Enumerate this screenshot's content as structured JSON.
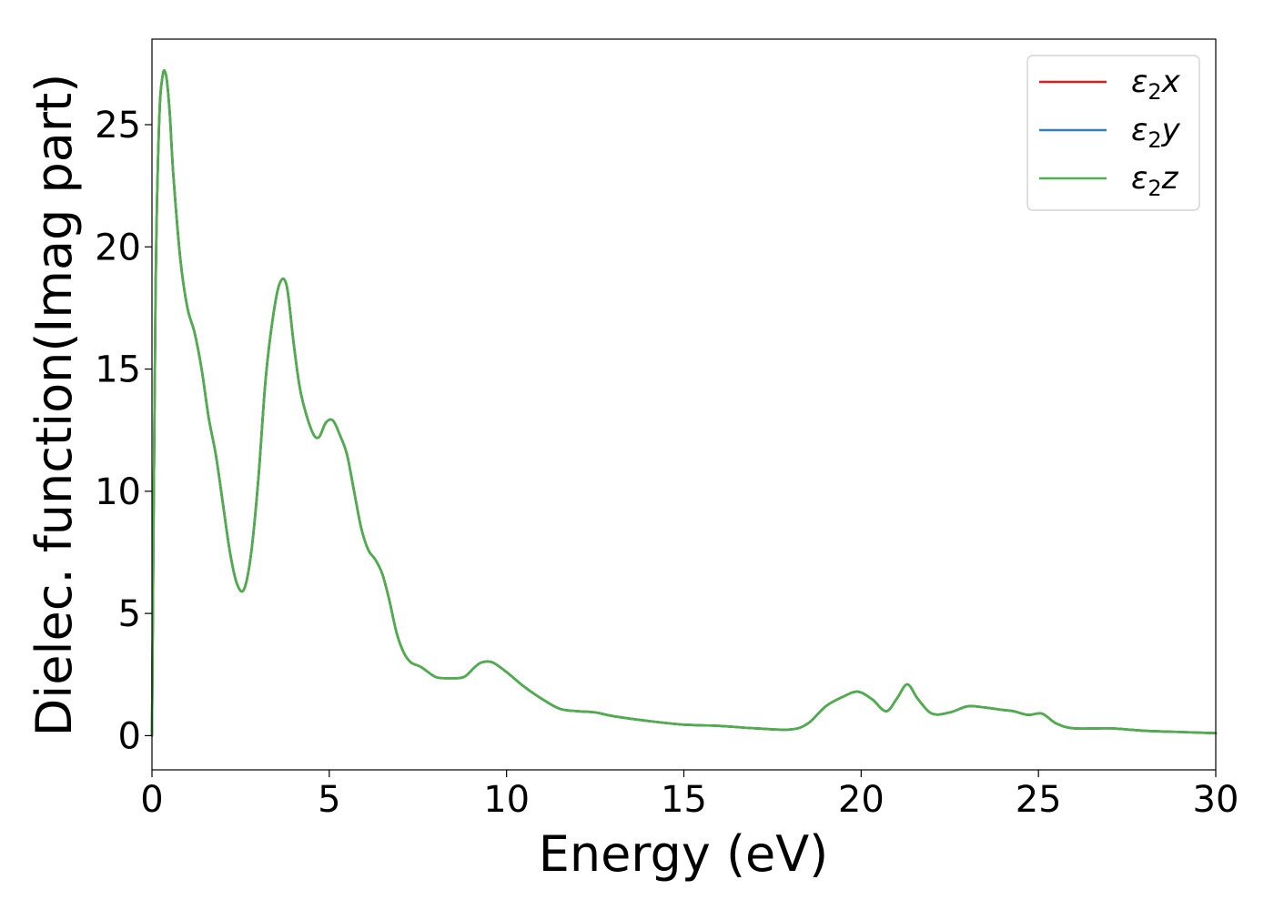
{
  "chart_data": {
    "type": "line",
    "xlabel": "Energy (eV)",
    "ylabel": "Dielec. function(Imag part)",
    "xlim": [
      0,
      30
    ],
    "ylim": [
      -1.4,
      28.5
    ],
    "xticks": [
      0,
      5,
      10,
      15,
      20,
      25,
      30
    ],
    "yticks": [
      0,
      5,
      10,
      15,
      20,
      25
    ],
    "grid": false,
    "legend_position": "top-right",
    "series": [
      {
        "name": "ε2x",
        "label": {
          "base": "ε",
          "sub": "2",
          "suffix": "x"
        },
        "color": "#e41a1c",
        "x": [
          0,
          0.1,
          0.2,
          0.3,
          0.4,
          0.5,
          0.6,
          0.8,
          1.0,
          1.2,
          1.4,
          1.6,
          1.8,
          2.0,
          2.2,
          2.4,
          2.6,
          2.8,
          3.0,
          3.2,
          3.4,
          3.6,
          3.8,
          4.0,
          4.2,
          4.5,
          4.7,
          4.9,
          5.1,
          5.3,
          5.5,
          5.7,
          5.9,
          6.1,
          6.3,
          6.5,
          6.7,
          6.9,
          7.1,
          7.3,
          7.6,
          8.0,
          8.4,
          8.8,
          9.1,
          9.3,
          9.6,
          10.0,
          10.5,
          11.0,
          11.5,
          12.0,
          12.5,
          13.0,
          14.0,
          15.0,
          16.0,
          17.0,
          18.0,
          18.5,
          19.0,
          19.5,
          19.9,
          20.3,
          20.7,
          21.0,
          21.3,
          21.6,
          22.0,
          22.5,
          23.0,
          23.5,
          24.0,
          24.3,
          24.7,
          25.1,
          25.5,
          26.0,
          27.0,
          28.0,
          29.0,
          30.0
        ],
        "y": [
          0,
          18.0,
          25.0,
          27.0,
          27.0,
          25.5,
          23.0,
          19.5,
          17.5,
          16.5,
          15.0,
          13.0,
          11.5,
          9.5,
          7.5,
          6.2,
          6.0,
          7.5,
          10.5,
          14.5,
          17.0,
          18.5,
          18.4,
          16.0,
          14.0,
          12.5,
          12.2,
          12.8,
          12.9,
          12.3,
          11.5,
          10.0,
          8.5,
          7.6,
          7.2,
          6.6,
          5.5,
          4.2,
          3.4,
          3.0,
          2.8,
          2.4,
          2.35,
          2.4,
          2.8,
          3.0,
          3.0,
          2.6,
          2.0,
          1.5,
          1.1,
          1.0,
          0.95,
          0.8,
          0.6,
          0.45,
          0.4,
          0.3,
          0.25,
          0.5,
          1.2,
          1.6,
          1.8,
          1.5,
          1.0,
          1.5,
          2.1,
          1.5,
          0.9,
          0.95,
          1.2,
          1.15,
          1.05,
          1.0,
          0.85,
          0.9,
          0.5,
          0.3,
          0.3,
          0.2,
          0.15,
          0.1
        ]
      },
      {
        "name": "ε2y",
        "label": {
          "base": "ε",
          "sub": "2",
          "suffix": "y"
        },
        "color": "#377eb8",
        "x": [
          0,
          0.1,
          0.2,
          0.3,
          0.4,
          0.5,
          0.6,
          0.8,
          1.0,
          1.2,
          1.4,
          1.6,
          1.8,
          2.0,
          2.2,
          2.4,
          2.6,
          2.8,
          3.0,
          3.2,
          3.4,
          3.6,
          3.8,
          4.0,
          4.2,
          4.5,
          4.7,
          4.9,
          5.1,
          5.3,
          5.5,
          5.7,
          5.9,
          6.1,
          6.3,
          6.5,
          6.7,
          6.9,
          7.1,
          7.3,
          7.6,
          8.0,
          8.4,
          8.8,
          9.1,
          9.3,
          9.6,
          10.0,
          10.5,
          11.0,
          11.5,
          12.0,
          12.5,
          13.0,
          14.0,
          15.0,
          16.0,
          17.0,
          18.0,
          18.5,
          19.0,
          19.5,
          19.9,
          20.3,
          20.7,
          21.0,
          21.3,
          21.6,
          22.0,
          22.5,
          23.0,
          23.5,
          24.0,
          24.3,
          24.7,
          25.1,
          25.5,
          26.0,
          27.0,
          28.0,
          29.0,
          30.0
        ],
        "y": [
          0,
          18.0,
          25.0,
          27.0,
          27.0,
          25.5,
          23.0,
          19.5,
          17.5,
          16.5,
          15.0,
          13.0,
          11.5,
          9.5,
          7.5,
          6.2,
          6.0,
          7.5,
          10.5,
          14.5,
          17.0,
          18.5,
          18.4,
          16.0,
          14.0,
          12.5,
          12.2,
          12.8,
          12.9,
          12.3,
          11.5,
          10.0,
          8.5,
          7.6,
          7.2,
          6.6,
          5.5,
          4.2,
          3.4,
          3.0,
          2.8,
          2.4,
          2.35,
          2.4,
          2.8,
          3.0,
          3.0,
          2.6,
          2.0,
          1.5,
          1.1,
          1.0,
          0.95,
          0.8,
          0.6,
          0.45,
          0.4,
          0.3,
          0.25,
          0.5,
          1.2,
          1.6,
          1.8,
          1.5,
          1.0,
          1.5,
          2.1,
          1.5,
          0.9,
          0.95,
          1.2,
          1.15,
          1.05,
          1.0,
          0.85,
          0.9,
          0.5,
          0.3,
          0.3,
          0.2,
          0.15,
          0.1
        ]
      },
      {
        "name": "ε2z",
        "label": {
          "base": "ε",
          "sub": "2",
          "suffix": "z"
        },
        "color": "#4daf4a",
        "x": [
          0,
          0.1,
          0.2,
          0.3,
          0.4,
          0.5,
          0.6,
          0.8,
          1.0,
          1.2,
          1.4,
          1.6,
          1.8,
          2.0,
          2.2,
          2.4,
          2.6,
          2.8,
          3.0,
          3.2,
          3.4,
          3.6,
          3.8,
          4.0,
          4.2,
          4.5,
          4.7,
          4.9,
          5.1,
          5.3,
          5.5,
          5.7,
          5.9,
          6.1,
          6.3,
          6.5,
          6.7,
          6.9,
          7.1,
          7.3,
          7.6,
          8.0,
          8.4,
          8.8,
          9.1,
          9.3,
          9.6,
          10.0,
          10.5,
          11.0,
          11.5,
          12.0,
          12.5,
          13.0,
          14.0,
          15.0,
          16.0,
          17.0,
          18.0,
          18.5,
          19.0,
          19.5,
          19.9,
          20.3,
          20.7,
          21.0,
          21.3,
          21.6,
          22.0,
          22.5,
          23.0,
          23.5,
          24.0,
          24.3,
          24.7,
          25.1,
          25.5,
          26.0,
          27.0,
          28.0,
          29.0,
          30.0
        ],
        "y": [
          0,
          18.0,
          25.0,
          27.0,
          27.0,
          25.5,
          23.0,
          19.5,
          17.5,
          16.5,
          15.0,
          13.0,
          11.5,
          9.5,
          7.5,
          6.2,
          6.0,
          7.5,
          10.5,
          14.5,
          17.0,
          18.5,
          18.4,
          16.0,
          14.0,
          12.5,
          12.2,
          12.8,
          12.9,
          12.3,
          11.5,
          10.0,
          8.5,
          7.6,
          7.2,
          6.6,
          5.5,
          4.2,
          3.4,
          3.0,
          2.8,
          2.4,
          2.35,
          2.4,
          2.8,
          3.0,
          3.0,
          2.6,
          2.0,
          1.5,
          1.1,
          1.0,
          0.95,
          0.8,
          0.6,
          0.45,
          0.4,
          0.3,
          0.25,
          0.5,
          1.2,
          1.6,
          1.8,
          1.5,
          1.0,
          1.5,
          2.1,
          1.5,
          0.9,
          0.95,
          1.2,
          1.15,
          1.05,
          1.0,
          0.85,
          0.9,
          0.5,
          0.3,
          0.3,
          0.2,
          0.15,
          0.1
        ]
      }
    ]
  }
}
